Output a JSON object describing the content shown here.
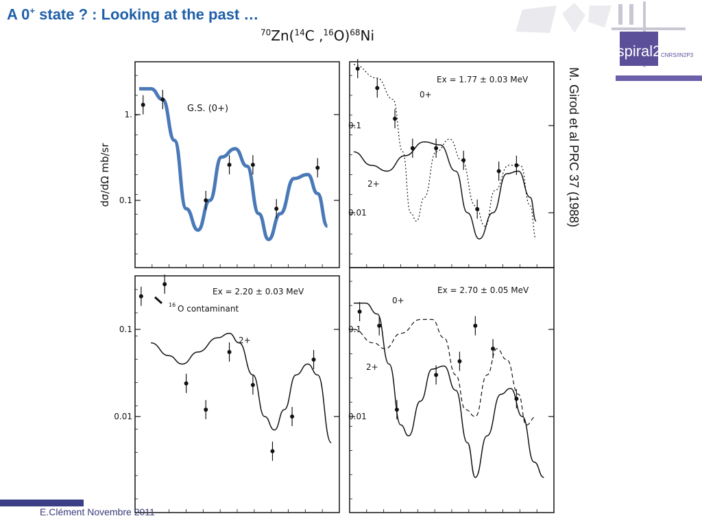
{
  "slide": {
    "title_prefix": "A 0",
    "title_sup": "+",
    "title_rest": " state ? : Looking at the past  …",
    "citation": "M. Girod et al PRC 37 (1988)",
    "footer": "E.Clément  Novembre 2011"
  },
  "reaction": {
    "a1": "70",
    "t1": "Zn(",
    "a2": "14",
    "t2": "C ,",
    "a3": "16",
    "t3": "O)",
    "a4": "68",
    "t4": "Ni"
  },
  "logo": {
    "brand": "spiral2",
    "org": "CNRS/IN2P3"
  },
  "colors": {
    "title": "#1f5fa8",
    "fit_curve": "#4a79b8",
    "footer_bar": "#3b3f86",
    "logo_purple": "#5b4f9a"
  },
  "chart_data": [
    {
      "type": "scatter",
      "panel": "top-left",
      "ylabel": "dσ/dΩ mb/sr",
      "scale": "log",
      "yticks": [
        "1.",
        "0.1"
      ],
      "label": "G.S. (0+)",
      "points": [
        [
          0.02,
          1.3
        ],
        [
          0.12,
          1.5
        ],
        [
          0.34,
          0.1
        ],
        [
          0.46,
          0.26
        ],
        [
          0.58,
          0.26
        ],
        [
          0.7,
          0.08
        ],
        [
          0.91,
          0.24
        ]
      ],
      "curves": [
        {
          "label": "blue fit",
          "style": "thick-blue",
          "points": [
            [
              0.0,
              2.0
            ],
            [
              0.06,
              2.0
            ],
            [
              0.12,
              1.5
            ],
            [
              0.18,
              0.5
            ],
            [
              0.24,
              0.08
            ],
            [
              0.3,
              0.045
            ],
            [
              0.36,
              0.1
            ],
            [
              0.42,
              0.32
            ],
            [
              0.49,
              0.4
            ],
            [
              0.55,
              0.25
            ],
            [
              0.61,
              0.07
            ],
            [
              0.66,
              0.035
            ],
            [
              0.72,
              0.07
            ],
            [
              0.79,
              0.18
            ],
            [
              0.86,
              0.2
            ],
            [
              0.91,
              0.12
            ],
            [
              0.96,
              0.05
            ]
          ]
        }
      ]
    },
    {
      "type": "scatter",
      "panel": "top-right",
      "scale": "log",
      "yticks": [
        "0.1",
        "0.01"
      ],
      "label": "Ex = 1.77 ± 0.03 MeV",
      "curve_labels": [
        "0+",
        "2+"
      ],
      "points": [
        [
          0.02,
          0.45
        ],
        [
          0.12,
          0.27
        ],
        [
          0.21,
          0.12
        ],
        [
          0.3,
          0.055
        ],
        [
          0.42,
          0.055
        ],
        [
          0.56,
          0.04
        ],
        [
          0.63,
          0.011
        ],
        [
          0.74,
          0.03
        ],
        [
          0.83,
          0.035
        ]
      ],
      "curves": [
        {
          "label": "0+",
          "style": "dotted",
          "points": [
            [
              0.0,
              0.5
            ],
            [
              0.12,
              0.35
            ],
            [
              0.2,
              0.2
            ],
            [
              0.25,
              0.05
            ],
            [
              0.29,
              0.01
            ],
            [
              0.32,
              0.008
            ],
            [
              0.36,
              0.015
            ],
            [
              0.42,
              0.05
            ],
            [
              0.49,
              0.07
            ],
            [
              0.55,
              0.04
            ],
            [
              0.62,
              0.012
            ],
            [
              0.67,
              0.007
            ],
            [
              0.72,
              0.018
            ],
            [
              0.79,
              0.035
            ],
            [
              0.85,
              0.035
            ],
            [
              0.9,
              0.012
            ],
            [
              0.93,
              0.005
            ]
          ]
        },
        {
          "label": "2+",
          "style": "solid",
          "points": [
            [
              0.0,
              0.05
            ],
            [
              0.09,
              0.035
            ],
            [
              0.17,
              0.03
            ],
            [
              0.26,
              0.045
            ],
            [
              0.36,
              0.065
            ],
            [
              0.44,
              0.06
            ],
            [
              0.52,
              0.03
            ],
            [
              0.58,
              0.01
            ],
            [
              0.64,
              0.005
            ],
            [
              0.71,
              0.01
            ],
            [
              0.78,
              0.028
            ],
            [
              0.84,
              0.03
            ],
            [
              0.9,
              0.015
            ],
            [
              0.93,
              0.008
            ]
          ]
        }
      ]
    },
    {
      "type": "scatter",
      "panel": "bottom-left",
      "scale": "log",
      "yticks": [
        "0.1",
        "0.01"
      ],
      "label": "Ex = 2.20 ± 0.03 MeV",
      "annotation_sup": "16",
      "annotation": "O contaminant",
      "curve_labels": [
        "2+"
      ],
      "points": [
        [
          0.01,
          0.24
        ],
        [
          0.13,
          0.33
        ],
        [
          0.24,
          0.024
        ],
        [
          0.34,
          0.012
        ],
        [
          0.46,
          0.055
        ],
        [
          0.58,
          0.023
        ],
        [
          0.68,
          0.004
        ],
        [
          0.78,
          0.01
        ],
        [
          0.89,
          0.045
        ]
      ],
      "curves": [
        {
          "label": "2+",
          "style": "solid",
          "points": [
            [
              0.06,
              0.07
            ],
            [
              0.15,
              0.05
            ],
            [
              0.22,
              0.04
            ],
            [
              0.3,
              0.055
            ],
            [
              0.4,
              0.08
            ],
            [
              0.46,
              0.09
            ],
            [
              0.51,
              0.07
            ],
            [
              0.58,
              0.03
            ],
            [
              0.64,
              0.01
            ],
            [
              0.69,
              0.007
            ],
            [
              0.74,
              0.012
            ],
            [
              0.8,
              0.03
            ],
            [
              0.86,
              0.04
            ],
            [
              0.91,
              0.03
            ],
            [
              0.98,
              0.005
            ]
          ]
        }
      ]
    },
    {
      "type": "scatter",
      "panel": "bottom-right",
      "scale": "log",
      "yticks": [
        "0.1",
        "0.01"
      ],
      "label": "Ex = 2.70 ± 0.05 MeV",
      "curve_labels": [
        "0+",
        "2+"
      ],
      "points": [
        [
          0.03,
          0.16
        ],
        [
          0.13,
          0.11
        ],
        [
          0.22,
          0.012
        ],
        [
          0.42,
          0.03
        ],
        [
          0.54,
          0.043
        ],
        [
          0.62,
          0.11
        ],
        [
          0.71,
          0.06
        ],
        [
          0.83,
          0.016
        ]
      ],
      "curves": [
        {
          "label": "0+",
          "style": "solid",
          "points": [
            [
              0.0,
              0.2
            ],
            [
              0.06,
              0.2
            ],
            [
              0.12,
              0.15
            ],
            [
              0.18,
              0.04
            ],
            [
              0.24,
              0.008
            ],
            [
              0.28,
              0.006
            ],
            [
              0.34,
              0.015
            ],
            [
              0.4,
              0.035
            ],
            [
              0.46,
              0.038
            ],
            [
              0.52,
              0.02
            ],
            [
              0.58,
              0.005
            ],
            [
              0.62,
              0.002
            ],
            [
              0.68,
              0.006
            ],
            [
              0.75,
              0.018
            ],
            [
              0.8,
              0.021
            ],
            [
              0.86,
              0.01
            ],
            [
              0.92,
              0.003
            ],
            [
              0.97,
              0.002
            ]
          ]
        },
        {
          "label": "2+",
          "style": "dashed",
          "points": [
            [
              0.0,
              0.1
            ],
            [
              0.1,
              0.07
            ],
            [
              0.16,
              0.06
            ],
            [
              0.24,
              0.09
            ],
            [
              0.34,
              0.13
            ],
            [
              0.4,
              0.13
            ],
            [
              0.46,
              0.08
            ],
            [
              0.52,
              0.03
            ],
            [
              0.57,
              0.012
            ],
            [
              0.62,
              0.01
            ],
            [
              0.68,
              0.03
            ],
            [
              0.73,
              0.06
            ],
            [
              0.78,
              0.045
            ],
            [
              0.84,
              0.018
            ],
            [
              0.88,
              0.008
            ],
            [
              0.93,
              0.01
            ]
          ]
        }
      ]
    }
  ]
}
